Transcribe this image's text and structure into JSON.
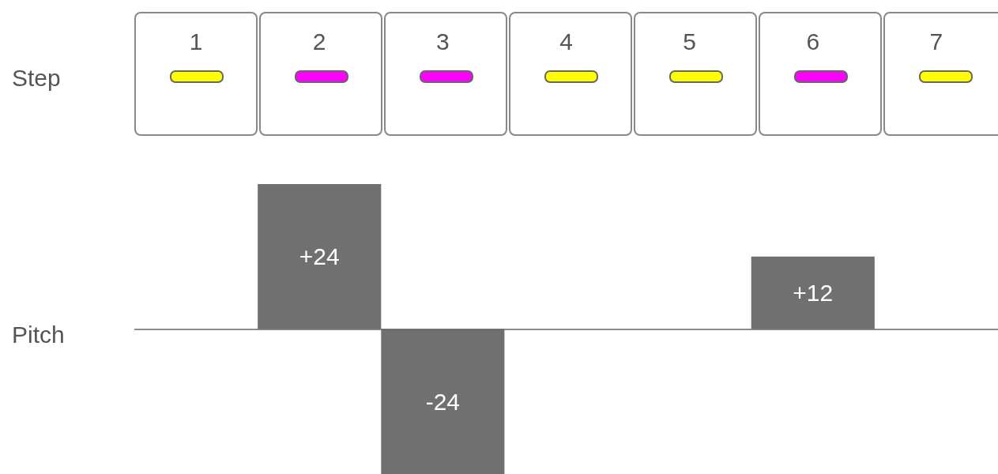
{
  "chart_data": {
    "type": "bar",
    "xlabel": "Step",
    "ylabel": "Pitch",
    "categories": [
      "1",
      "2",
      "3",
      "4",
      "5",
      "6",
      "7"
    ],
    "values": [
      0,
      24,
      -24,
      0,
      0,
      12,
      0
    ],
    "value_labels": [
      null,
      "+24",
      "-24",
      null,
      null,
      "+12",
      null
    ],
    "color": "#707070"
  }
}
